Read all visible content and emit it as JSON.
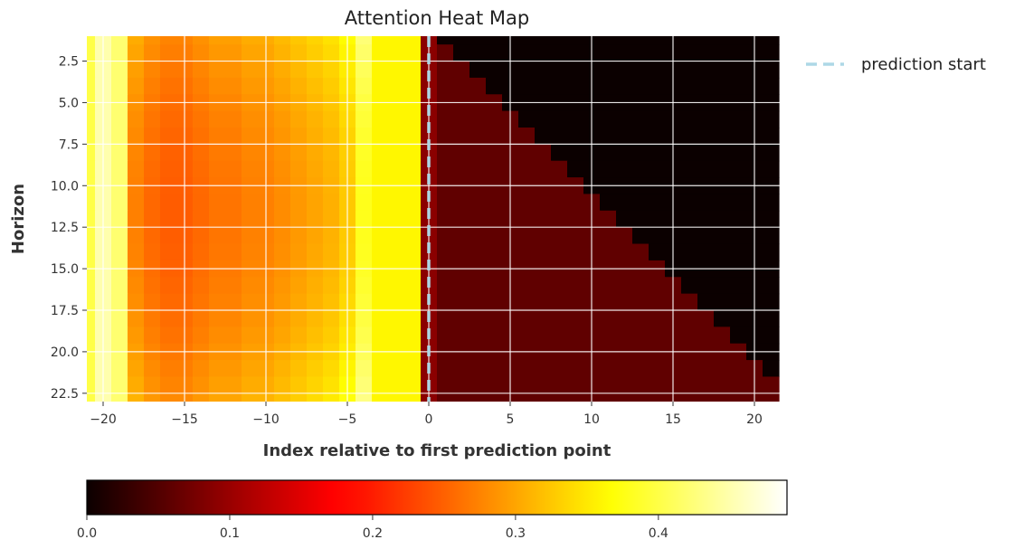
{
  "chart_data": {
    "type": "heatmap",
    "title": "Attention Heat Map",
    "xlabel": "Index relative to first prediction point",
    "ylabel": "Horizon",
    "xlim": [
      -21,
      22
    ],
    "ylim": [
      23,
      1
    ],
    "x_range": [
      -21,
      21
    ],
    "y_range": [
      1,
      23
    ],
    "x_ticks": [
      -20,
      -15,
      -10,
      -5,
      0,
      5,
      10,
      15,
      20
    ],
    "y_ticks": [
      2.5,
      5.0,
      7.5,
      10.0,
      12.5,
      15.0,
      17.5,
      20.0,
      22.5
    ],
    "x_tick_labels": [
      "−20",
      "−15",
      "−10",
      "−5",
      "0",
      "5",
      "10",
      "15",
      "20"
    ],
    "y_tick_labels": [
      "2.5",
      "5.0",
      "7.5",
      "10.0",
      "12.5",
      "15.0",
      "17.5",
      "20.0",
      "22.5"
    ],
    "grid": true,
    "colormap": "hot",
    "value_range": [
      0,
      0.49
    ],
    "encoder_column_values": {
      "x": [
        -21,
        -20,
        -19,
        -18,
        -17,
        -16,
        -15,
        -14,
        -13,
        -12,
        -11,
        -10,
        -9,
        -8,
        -7,
        -6,
        -5,
        -4,
        -3,
        -2,
        -1
      ],
      "values": [
        0.4,
        0.45,
        0.42,
        0.31,
        0.29,
        0.28,
        0.28,
        0.29,
        0.3,
        0.3,
        0.31,
        0.31,
        0.32,
        0.33,
        0.34,
        0.35,
        0.37,
        0.43,
        0.36,
        0.36,
        0.36
      ]
    },
    "decoder_value": 0.06,
    "decoder_first_column_value": 0.09,
    "masked_value": 0.0,
    "vertical_line": {
      "x": 0,
      "style": "dashed",
      "color": "#add8e6",
      "label": "prediction start"
    },
    "legend": {
      "entries": [
        "prediction start"
      ],
      "placement": "outside-top-right"
    },
    "colorbar": {
      "orientation": "horizontal",
      "placement": "bottom",
      "ticks": [
        0.0,
        0.1,
        0.2,
        0.3,
        0.4
      ],
      "tick_labels": [
        "0.0",
        "0.1",
        "0.2",
        "0.3",
        "0.4"
      ],
      "range": [
        0,
        0.49
      ]
    }
  },
  "colors": {
    "grid": "#ffffff",
    "prediction_line": "#add8e6",
    "text": "#333333"
  }
}
